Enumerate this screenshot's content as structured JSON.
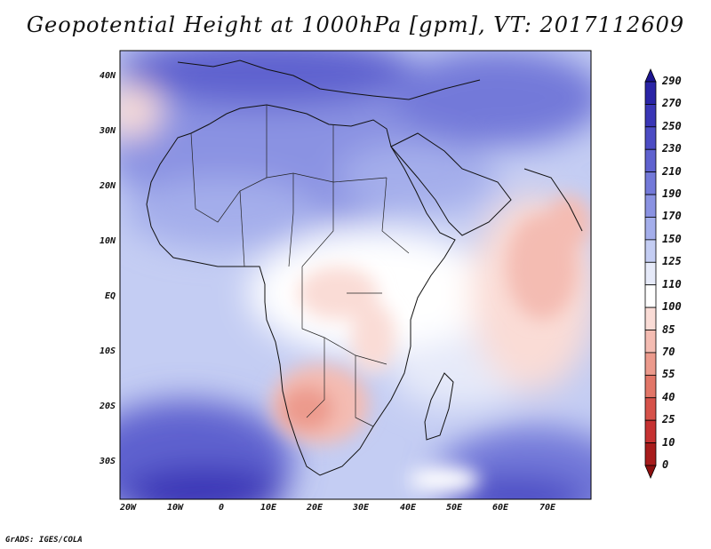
{
  "title": "Geopotential Height at 1000hPa [gpm], VT: 2017112609",
  "credit": "GrADS: IGES/COLA",
  "latitude_labels": [
    "40N",
    "30N",
    "20N",
    "10N",
    "EQ",
    "10S",
    "20S",
    "30S"
  ],
  "longitude_labels": [
    "20W",
    "10W",
    "0",
    "10E",
    "20E",
    "30E",
    "40E",
    "50E",
    "60E",
    "70E"
  ],
  "colorbar": {
    "levels": [
      "290",
      "270",
      "250",
      "230",
      "210",
      "190",
      "170",
      "150",
      "125",
      "110",
      "100",
      "85",
      "70",
      "55",
      "40",
      "25",
      "10",
      "0"
    ],
    "colors": [
      "#1c1490",
      "#2a24a6",
      "#3a36b6",
      "#4c4cc4",
      "#5f62cf",
      "#7379d9",
      "#8a92e2",
      "#a4aeeb",
      "#c4cdf3",
      "#e6eaf9",
      "#ffffff",
      "#fadcd6",
      "#f4bcb2",
      "#ec9a8c",
      "#e27668",
      "#d6524a",
      "#c63232",
      "#a81c1c",
      "#8c0f0f"
    ]
  },
  "map": {
    "region": "Africa",
    "lon_range": [
      -22,
      80
    ],
    "lat_range": [
      -37,
      45
    ]
  }
}
